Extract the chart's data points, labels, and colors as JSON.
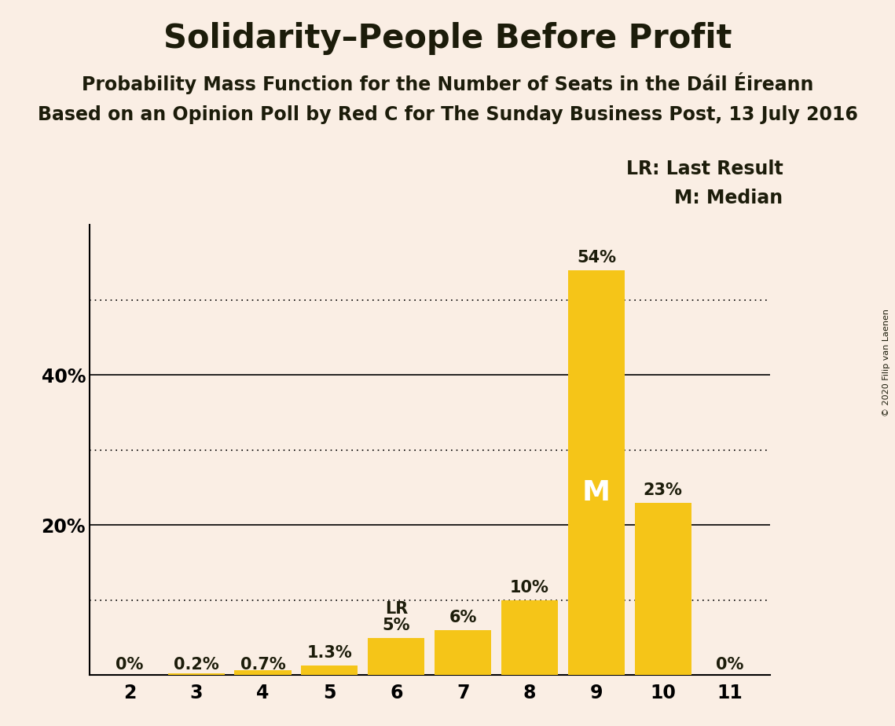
{
  "title": "Solidarity–People Before Profit",
  "subtitle1": "Probability Mass Function for the Number of Seats in the Dáil Éireann",
  "subtitle2": "Based on an Opinion Poll by Red C for The Sunday Business Post, 13 July 2016",
  "copyright": "© 2020 Filip van Laenen",
  "categories": [
    2,
    3,
    4,
    5,
    6,
    7,
    8,
    9,
    10,
    11
  ],
  "values": [
    0.0,
    0.2,
    0.7,
    1.3,
    5.0,
    6.0,
    10.0,
    54.0,
    23.0,
    0.0
  ],
  "labels": [
    "0%",
    "0.2%",
    "0.7%",
    "1.3%",
    "5%",
    "6%",
    "10%",
    "54%",
    "23%",
    "0%"
  ],
  "bar_color": "#F5C518",
  "background_color": "#FAEEE4",
  "text_color": "#1C1C0A",
  "lr_bar_index": 4,
  "median_bar_index": 7,
  "legend_lr": "LR: Last Result",
  "legend_m": "M: Median",
  "ylim": [
    0,
    60
  ],
  "solid_yticks": [
    20,
    40
  ],
  "dotted_yticks": [
    10,
    30,
    50
  ],
  "title_fontsize": 30,
  "subtitle_fontsize": 17,
  "label_fontsize": 15,
  "tick_fontsize": 17,
  "legend_fontsize": 17,
  "median_label_fontsize": 26
}
